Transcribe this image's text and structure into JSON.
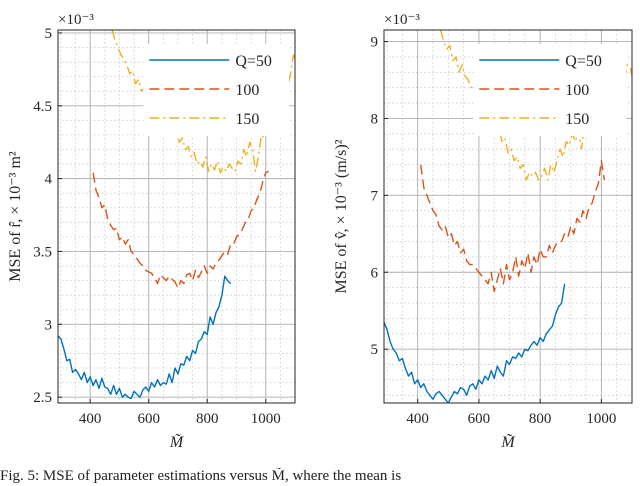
{
  "chart_data": [
    {
      "type": "line",
      "ylabel": "MSE of r̂,  × 10⁻³ m²",
      "xlabel": "M̃",
      "exponent_label": "×10⁻³",
      "xlim": [
        290,
        1100
      ],
      "ylim": [
        2.46,
        5.02
      ],
      "xticks": [
        400,
        600,
        800,
        1000
      ],
      "xtick_labels": [
        "400",
        "600",
        "800",
        "1000"
      ],
      "yticks": [
        2.5,
        3,
        3.5,
        4,
        4.5,
        5
      ],
      "ytick_labels": [
        "2.5",
        "3",
        "3.5",
        "4",
        "4.5",
        "5"
      ],
      "grid": true,
      "legend_position": "top-right",
      "series": [
        {
          "name": "Q=50",
          "color": "#0072BD",
          "dash": "solid",
          "x": [
            290,
            300,
            310,
            320,
            330,
            340,
            350,
            360,
            370,
            380,
            390,
            400,
            410,
            420,
            430,
            440,
            450,
            460,
            470,
            480,
            490,
            500,
            510,
            520,
            530,
            540,
            550,
            560,
            570,
            580,
            590,
            600,
            610,
            620,
            630,
            640,
            650,
            660,
            670,
            680,
            690,
            700,
            710,
            720,
            730,
            740,
            750,
            760,
            770,
            780,
            790,
            800,
            810,
            820,
            830,
            840,
            850,
            860,
            870,
            880
          ],
          "y": [
            2.92,
            2.9,
            2.83,
            2.75,
            2.76,
            2.67,
            2.69,
            2.66,
            2.62,
            2.67,
            2.6,
            2.64,
            2.58,
            2.62,
            2.56,
            2.63,
            2.57,
            2.56,
            2.52,
            2.58,
            2.52,
            2.56,
            2.5,
            2.52,
            2.5,
            2.49,
            2.54,
            2.52,
            2.5,
            2.55,
            2.57,
            2.54,
            2.6,
            2.57,
            2.62,
            2.58,
            2.6,
            2.59,
            2.66,
            2.6,
            2.7,
            2.66,
            2.73,
            2.72,
            2.78,
            2.75,
            2.82,
            2.8,
            2.88,
            2.9,
            2.95,
            2.93,
            3.05,
            3.0,
            3.08,
            3.12,
            3.2,
            3.33,
            3.3,
            3.28
          ]
        },
        {
          "name": "100",
          "color": "#D95319",
          "dash": "dashed",
          "x": [
            410,
            420,
            430,
            440,
            450,
            460,
            470,
            480,
            490,
            500,
            510,
            520,
            530,
            540,
            550,
            560,
            570,
            580,
            590,
            600,
            610,
            620,
            630,
            640,
            650,
            660,
            670,
            680,
            690,
            700,
            710,
            720,
            730,
            740,
            750,
            760,
            770,
            780,
            790,
            800,
            810,
            820,
            830,
            840,
            850,
            860,
            870,
            880,
            890,
            900,
            910,
            920,
            930,
            940,
            950,
            960,
            970,
            980,
            990,
            1000,
            1010
          ],
          "y": [
            4.04,
            3.92,
            3.87,
            3.8,
            3.82,
            3.72,
            3.68,
            3.65,
            3.66,
            3.58,
            3.6,
            3.55,
            3.58,
            3.5,
            3.48,
            3.45,
            3.42,
            3.4,
            3.37,
            3.36,
            3.35,
            3.32,
            3.28,
            3.34,
            3.32,
            3.3,
            3.33,
            3.31,
            3.29,
            3.25,
            3.3,
            3.28,
            3.34,
            3.35,
            3.3,
            3.37,
            3.32,
            3.36,
            3.4,
            3.35,
            3.4,
            3.38,
            3.42,
            3.44,
            3.47,
            3.5,
            3.48,
            3.55,
            3.55,
            3.6,
            3.62,
            3.65,
            3.7,
            3.72,
            3.78,
            3.8,
            3.86,
            3.9,
            3.98,
            4.04,
            4.05
          ]
        },
        {
          "name": "150",
          "color": "#EDB120",
          "dash": "dashdot",
          "x": [
            475,
            485,
            495,
            505,
            515,
            525,
            535,
            545,
            555,
            565,
            575,
            585,
            595,
            605,
            615,
            625,
            635,
            645,
            655,
            665,
            675,
            685,
            695,
            705,
            715,
            725,
            735,
            745,
            755,
            765,
            775,
            785,
            795,
            805,
            815,
            825,
            835,
            845,
            855,
            865,
            875,
            885,
            895,
            905,
            915,
            925,
            935,
            945,
            955,
            965,
            975,
            985,
            995,
            1005,
            1015,
            1025,
            1035,
            1045,
            1055,
            1065,
            1075,
            1085,
            1095,
            1100
          ],
          "y": [
            5.02,
            4.95,
            4.9,
            4.85,
            4.82,
            4.78,
            4.72,
            4.74,
            4.65,
            4.68,
            4.6,
            4.62,
            4.55,
            4.57,
            4.5,
            4.52,
            4.45,
            4.48,
            4.4,
            4.35,
            4.38,
            4.3,
            4.32,
            4.25,
            4.28,
            4.2,
            4.22,
            4.15,
            4.18,
            4.1,
            4.12,
            4.08,
            4.15,
            4.05,
            4.1,
            4.06,
            4.12,
            4.04,
            4.08,
            4.05,
            4.1,
            4.07,
            4.05,
            4.12,
            4.1,
            4.2,
            4.15,
            4.25,
            4.2,
            4.05,
            4.15,
            4.3,
            4.28,
            4.35,
            4.4,
            4.42,
            4.48,
            4.5,
            4.55,
            4.6,
            4.62,
            4.72,
            4.85,
            4.82
          ]
        }
      ]
    },
    {
      "type": "line",
      "ylabel": "MSE of v̂,  × 10⁻³ (m/s)²",
      "xlabel": "M̃",
      "exponent_label": "×10⁻³",
      "xlim": [
        290,
        1100
      ],
      "ylim": [
        4.3,
        9.15
      ],
      "xticks": [
        400,
        600,
        800,
        1000
      ],
      "xtick_labels": [
        "400",
        "600",
        "800",
        "1000"
      ],
      "yticks": [
        5,
        6,
        7,
        8,
        9
      ],
      "ytick_labels": [
        "5",
        "6",
        "7",
        "8",
        "9"
      ],
      "grid": true,
      "legend_position": "top-right",
      "series": [
        {
          "name": "Q=50",
          "color": "#0072BD",
          "dash": "solid",
          "x": [
            290,
            300,
            310,
            320,
            330,
            340,
            350,
            360,
            370,
            380,
            390,
            400,
            410,
            420,
            430,
            440,
            450,
            460,
            470,
            480,
            490,
            500,
            510,
            520,
            530,
            540,
            550,
            560,
            570,
            580,
            590,
            600,
            610,
            620,
            630,
            640,
            650,
            660,
            670,
            680,
            690,
            700,
            710,
            720,
            730,
            740,
            750,
            760,
            770,
            780,
            790,
            800,
            810,
            820,
            830,
            840,
            850,
            860,
            870,
            880
          ],
          "y": [
            5.35,
            5.25,
            5.1,
            5.0,
            4.95,
            4.85,
            4.88,
            4.75,
            4.65,
            4.7,
            4.55,
            4.6,
            4.5,
            4.55,
            4.45,
            4.4,
            4.35,
            4.42,
            4.45,
            4.4,
            4.35,
            4.3,
            4.38,
            4.45,
            4.42,
            4.5,
            4.48,
            4.4,
            4.52,
            4.55,
            4.48,
            4.6,
            4.55,
            4.65,
            4.6,
            4.72,
            4.62,
            4.78,
            4.7,
            4.65,
            4.85,
            4.8,
            4.9,
            4.88,
            4.95,
            4.9,
            5.0,
            4.98,
            5.05,
            5.1,
            5.05,
            5.15,
            5.1,
            5.2,
            5.25,
            5.3,
            5.45,
            5.55,
            5.6,
            5.85
          ]
        },
        {
          "name": "100",
          "color": "#D95319",
          "dash": "dashed",
          "x": [
            410,
            420,
            430,
            440,
            450,
            460,
            470,
            480,
            490,
            500,
            510,
            520,
            530,
            540,
            550,
            560,
            570,
            580,
            590,
            600,
            610,
            620,
            630,
            640,
            650,
            660,
            670,
            680,
            690,
            700,
            710,
            720,
            730,
            740,
            750,
            760,
            770,
            780,
            790,
            800,
            810,
            820,
            830,
            840,
            850,
            860,
            870,
            880,
            890,
            900,
            910,
            920,
            930,
            940,
            950,
            960,
            970,
            980,
            990,
            1000,
            1010
          ],
          "y": [
            7.4,
            7.1,
            7.0,
            6.9,
            6.8,
            6.75,
            6.6,
            6.55,
            6.6,
            6.45,
            6.5,
            6.35,
            6.4,
            6.25,
            6.3,
            6.15,
            6.1,
            6.1,
            6.05,
            6.0,
            5.95,
            5.9,
            5.85,
            6.0,
            5.75,
            5.9,
            6.05,
            5.85,
            6.1,
            5.9,
            6.0,
            6.2,
            5.95,
            6.15,
            6.05,
            6.25,
            6.0,
            6.2,
            6.1,
            6.3,
            6.2,
            6.2,
            6.35,
            6.25,
            6.35,
            6.4,
            6.4,
            6.5,
            6.45,
            6.6,
            6.5,
            6.7,
            6.65,
            6.8,
            6.7,
            6.85,
            6.9,
            7.05,
            7.15,
            7.45,
            7.2
          ]
        },
        {
          "name": "150",
          "color": "#EDB120",
          "dash": "dashdot",
          "x": [
            475,
            485,
            495,
            505,
            515,
            525,
            535,
            545,
            555,
            565,
            575,
            585,
            595,
            605,
            615,
            625,
            635,
            645,
            655,
            665,
            675,
            685,
            695,
            705,
            715,
            725,
            735,
            745,
            755,
            765,
            775,
            785,
            795,
            805,
            815,
            825,
            835,
            845,
            855,
            865,
            875,
            885,
            895,
            905,
            915,
            925,
            935,
            945,
            955,
            965,
            975,
            985,
            995,
            1005,
            1015,
            1025,
            1035,
            1045,
            1055,
            1065,
            1075,
            1085,
            1095,
            1100
          ],
          "y": [
            9.15,
            9.0,
            8.9,
            8.95,
            8.75,
            8.8,
            8.6,
            8.7,
            8.55,
            8.5,
            8.4,
            8.45,
            8.2,
            8.3,
            8.1,
            8.15,
            7.95,
            8.05,
            7.85,
            7.9,
            7.7,
            7.75,
            7.55,
            7.6,
            7.45,
            7.5,
            7.35,
            7.4,
            7.2,
            7.3,
            7.25,
            7.3,
            7.2,
            7.25,
            7.35,
            7.2,
            7.4,
            7.3,
            7.45,
            7.6,
            7.5,
            7.7,
            7.65,
            7.8,
            7.7,
            7.85,
            7.6,
            7.95,
            8.0,
            7.9,
            8.1,
            8.2,
            8.3,
            8.0,
            8.45,
            8.1,
            8.4,
            8.5,
            8.3,
            8.6,
            8.5,
            8.7,
            8.65,
            8.55
          ]
        }
      ]
    }
  ],
  "caption": "Fig. 5: MSE of parameter estimations versus M̃, where the mean is"
}
